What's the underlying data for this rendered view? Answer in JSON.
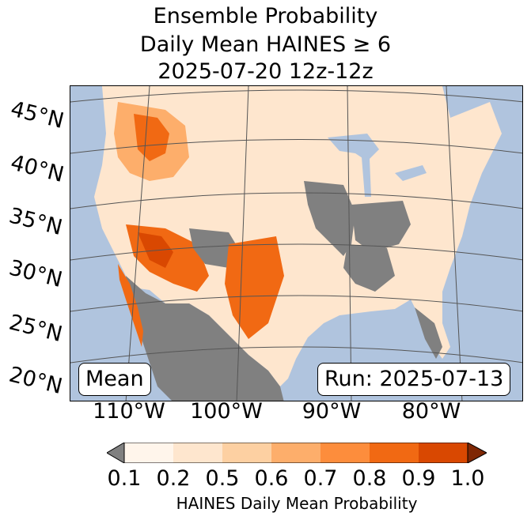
{
  "title": {
    "line1": "Ensemble Probability",
    "line2": "Daily Mean HAINES ≥ 6",
    "line3": "2025-07-20 12z-12z"
  },
  "map": {
    "lat_labels": [
      "45°N",
      "40°N",
      "35°N",
      "30°N",
      "25°N",
      "20°N"
    ],
    "lon_labels": [
      "110°W",
      "100°W",
      "90°W",
      "80°W"
    ],
    "stat_box": "Mean",
    "run_box": "Run: 2025-07-13",
    "colors": {
      "ocean": "#b0c4de",
      "land": "#ffffff",
      "missing": "#808080",
      "lakes": "#b0c4de"
    }
  },
  "colorbar": {
    "ticks": [
      "0.1",
      "0.2",
      "0.5",
      "0.6",
      "0.7",
      "0.8",
      "0.9",
      "1.0"
    ],
    "label": "HAINES Daily Mean Probability",
    "under_color": "#808080",
    "over_color": "#7f2704",
    "bins": [
      "#fff5eb",
      "#fee6ce",
      "#fdd0a2",
      "#fdae6b",
      "#fd8d3c",
      "#f16913",
      "#d94801"
    ]
  }
}
